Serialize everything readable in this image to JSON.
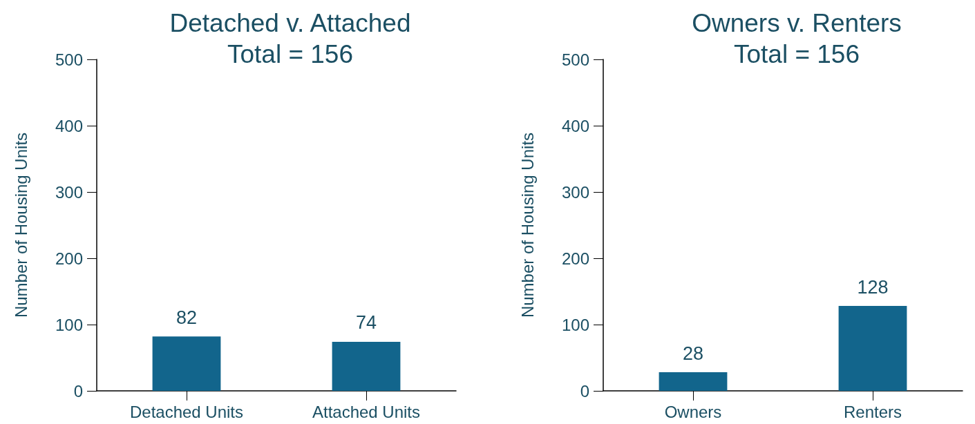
{
  "chart_data": [
    {
      "type": "bar",
      "title": "Detached v. Attached",
      "subtitle": "Total = 156",
      "ylabel": "Number of Housing Units",
      "categories": [
        "Detached Units",
        "Attached Units"
      ],
      "values": [
        82,
        74
      ],
      "color": "#12658c",
      "ylim": [
        0,
        500
      ],
      "yticks": [
        0,
        100,
        200,
        300,
        400,
        500
      ],
      "data_labels": true
    },
    {
      "type": "bar",
      "title": "Owners v. Renters",
      "subtitle": "Total = 156",
      "ylabel": "Number of Housing Units",
      "categories": [
        "Owners",
        "Renters"
      ],
      "values": [
        28,
        128
      ],
      "color": "#12658c",
      "ylim": [
        0,
        500
      ],
      "yticks": [
        0,
        100,
        200,
        300,
        400,
        500
      ],
      "data_labels": true
    }
  ]
}
